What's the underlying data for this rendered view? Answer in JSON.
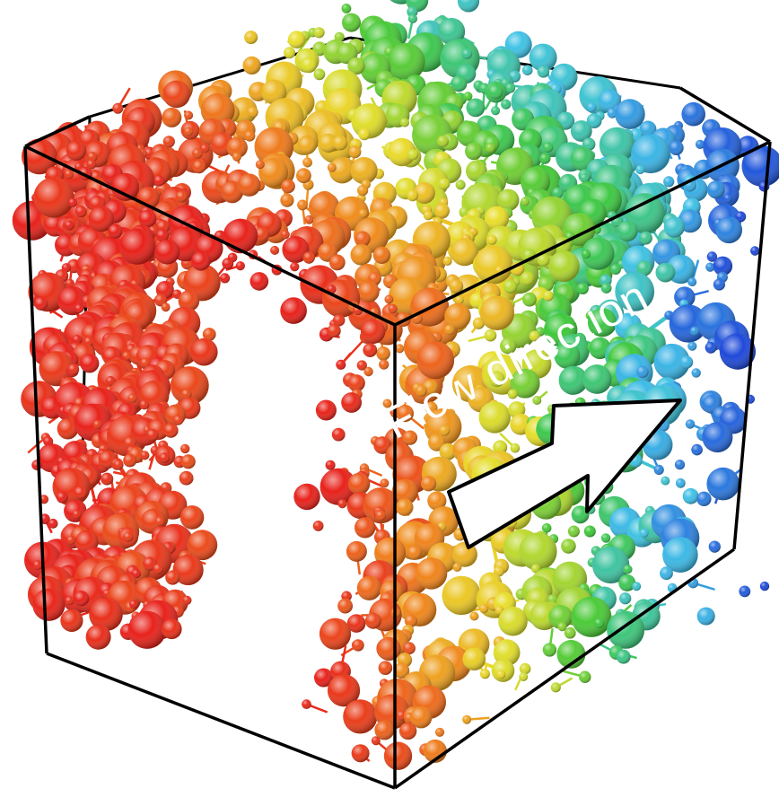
{
  "figure": {
    "flow_label": "Flow direction",
    "colors": {
      "inlet": "#e8221b",
      "orange": "#f08a1c",
      "yellow": "#e9de2a",
      "green": "#3ec83a",
      "cyan": "#3fc2e6",
      "outlet": "#1c3fd8",
      "edge": "#000000",
      "arrow_fill": "#ffffff",
      "arrow_stroke": "#000000"
    },
    "icons": [
      "flow-arrow-icon"
    ]
  }
}
